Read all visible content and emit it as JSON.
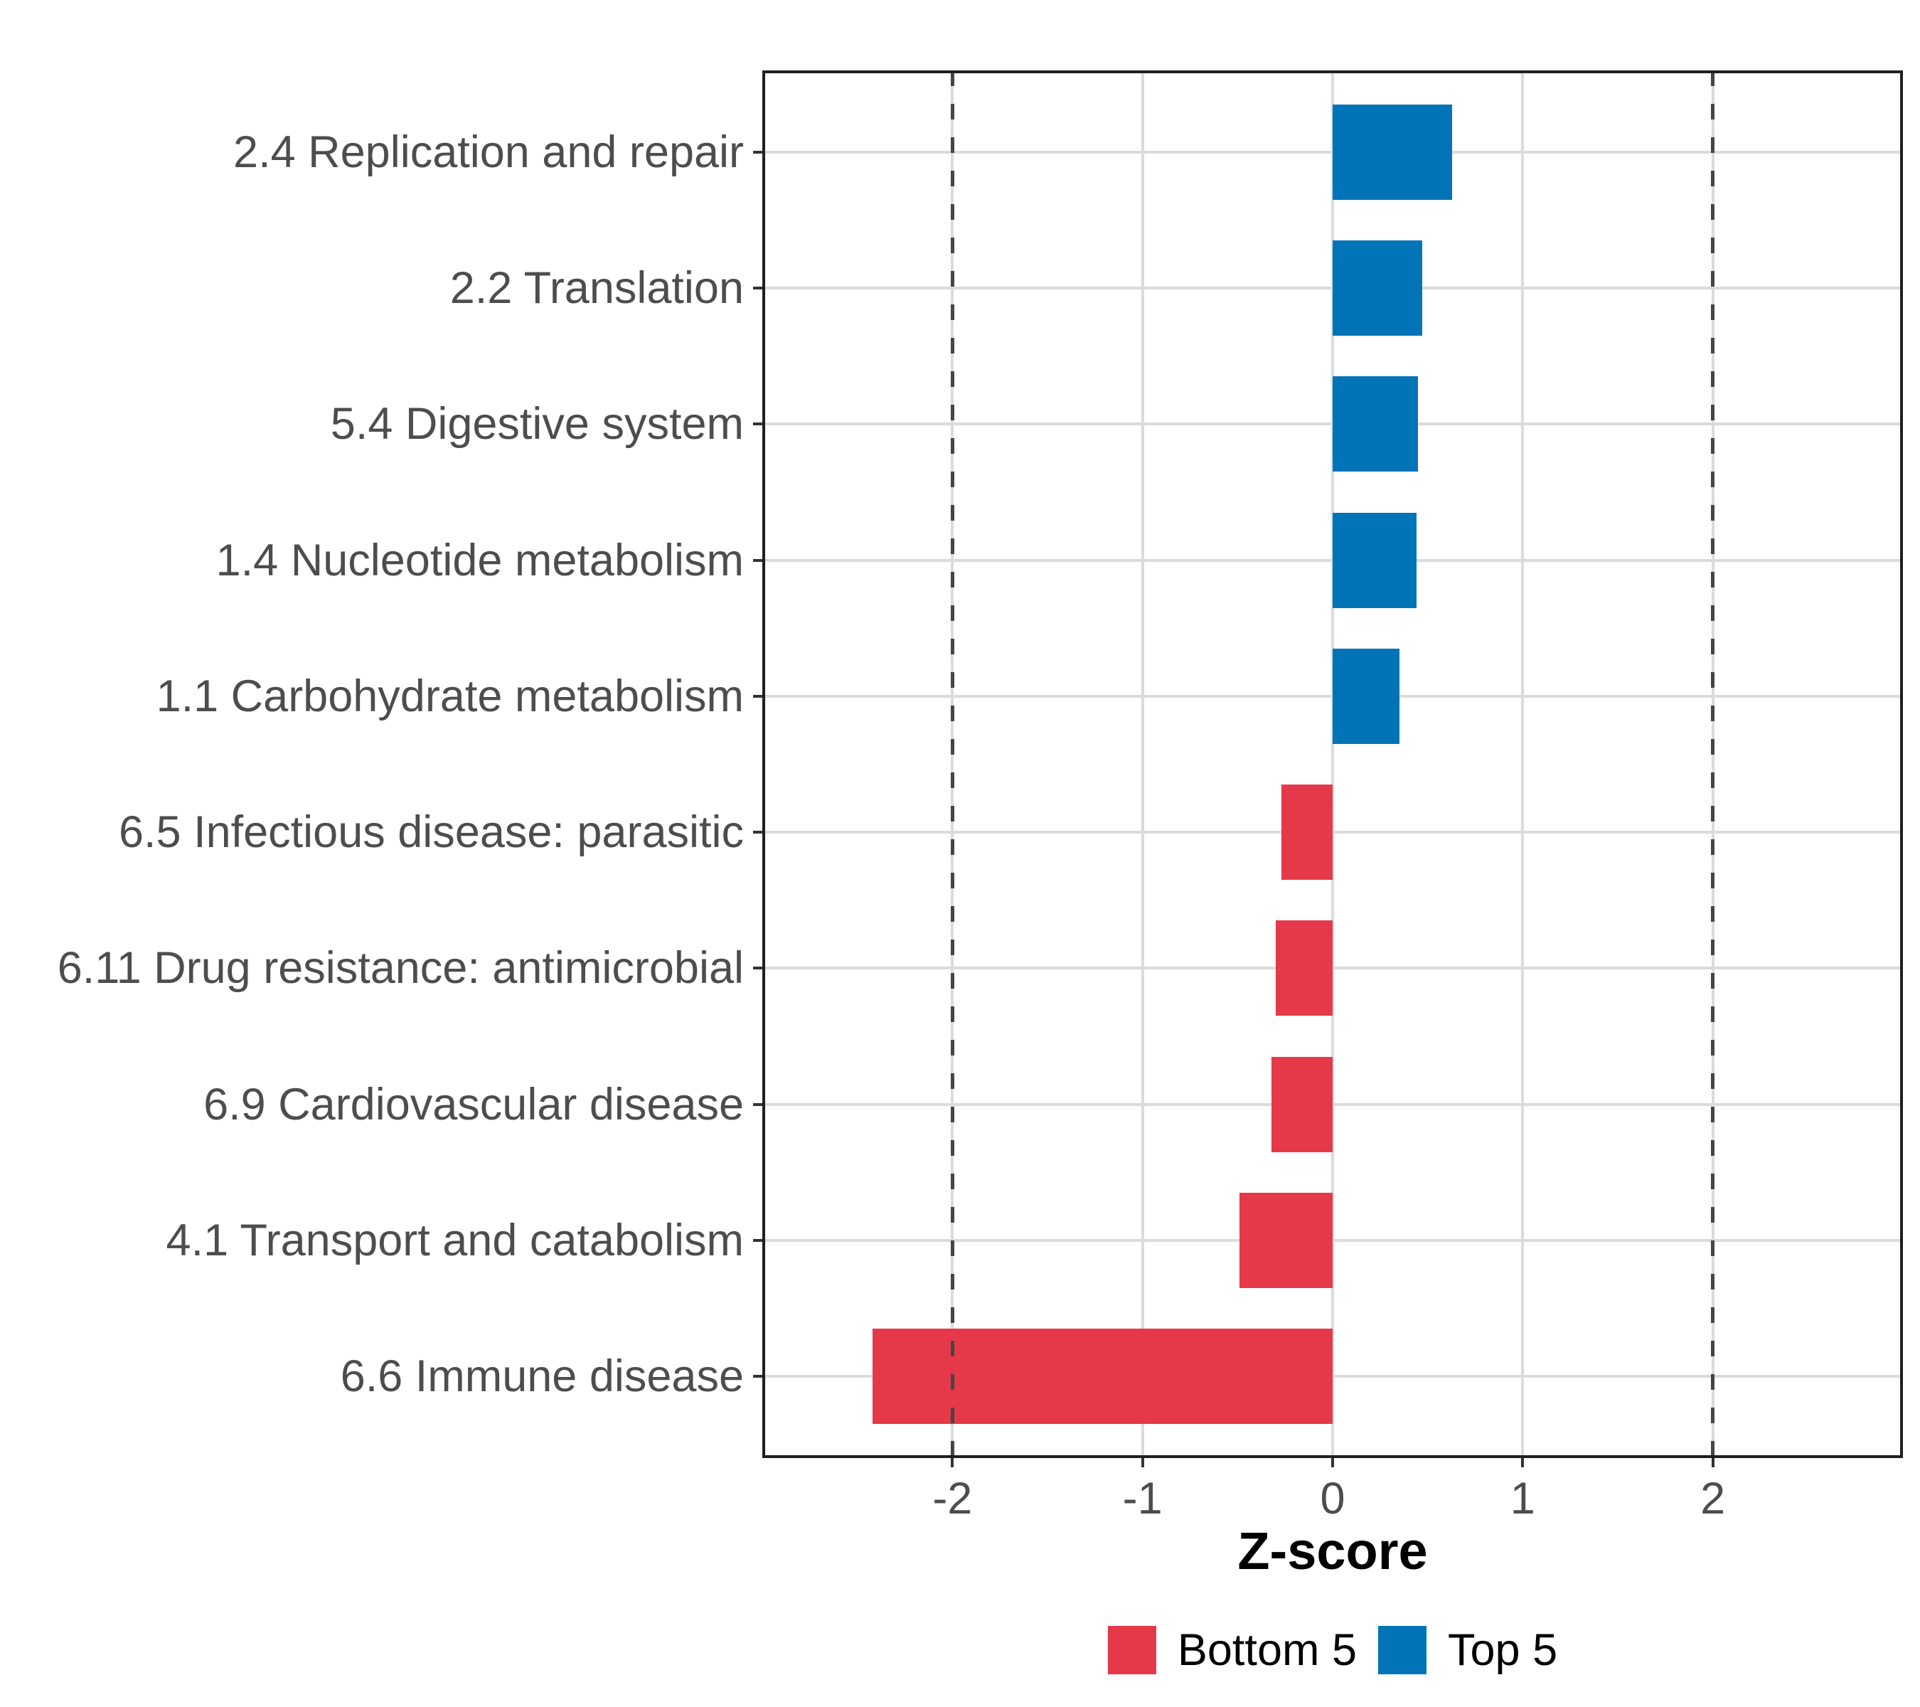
{
  "chart_data": {
    "type": "bar",
    "orientation": "horizontal",
    "title": "",
    "xlabel": "Z-score",
    "ylabel": "",
    "xlim": [
      -3,
      3
    ],
    "x_ticks": [
      -2,
      -1,
      0,
      1,
      2
    ],
    "x_tick_labels": [
      "-2",
      "-1",
      "0",
      "1",
      "2"
    ],
    "reference_lines": [
      -2,
      2
    ],
    "grid": true,
    "legend_position": "bottom",
    "categories": [
      "2.4 Replication and repair",
      "2.2 Translation",
      "5.4 Digestive system",
      "1.4 Nucleotide metabolism",
      "1.1 Carbohydrate metabolism",
      "6.5 Infectious disease: parasitic",
      "6.11 Drug resistance: antimicrobial",
      "6.9 Cardiovascular disease",
      "4.1 Transport and catabolism",
      "6.6 Immune disease"
    ],
    "values": [
      0.63,
      0.47,
      0.45,
      0.44,
      0.35,
      -0.27,
      -0.3,
      -0.32,
      -0.49,
      -2.42
    ],
    "series_colors": {
      "negative": "#e5394a",
      "positive": "#0074b7"
    },
    "legend": [
      {
        "label": "Bottom 5",
        "color": "#e5394a"
      },
      {
        "label": "Top 5",
        "color": "#0074b7"
      }
    ],
    "style_colors": {
      "gridline": "#dbdbdb",
      "reference_dash": "#454545",
      "axis_text": "#4d4d4d",
      "panel_border": "#1f1f1f"
    }
  }
}
